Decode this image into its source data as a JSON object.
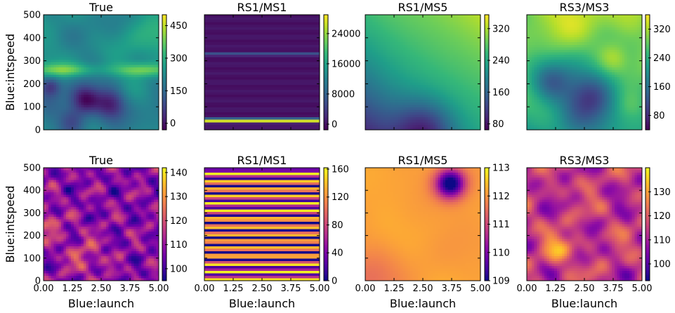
{
  "chart_data": [
    {
      "type": "heatmap",
      "title": "True",
      "colormap": "viridis",
      "xlabel": "",
      "ylabel": "Blue:intspeed",
      "xlim": [
        0,
        5
      ],
      "ylim": [
        0,
        500
      ],
      "clim": [
        -30,
        500
      ],
      "xticks": [],
      "yticks": [
        "0",
        "100",
        "200",
        "300",
        "400",
        "500"
      ],
      "cbar_ticks": [
        {
          "value": 0,
          "label": "0"
        },
        {
          "value": 150,
          "label": "150"
        },
        {
          "value": 300,
          "label": "300"
        },
        {
          "value": 450,
          "label": "450"
        }
      ],
      "field_model": "smooth random field with a bright band near y=250 and dark blobs around x=1.8, 2.8 at y=130"
    },
    {
      "type": "heatmap",
      "title": "RS1/MS1",
      "colormap": "viridis",
      "xlabel": "",
      "ylabel": "",
      "xlim": [
        0,
        5
      ],
      "ylim": [
        0,
        500
      ],
      "clim": [
        -1500,
        29000
      ],
      "xticks": [],
      "yticks": [],
      "cbar_ticks": [
        {
          "value": 0,
          "label": "0"
        },
        {
          "value": 8000,
          "label": "8000"
        },
        {
          "value": 16000,
          "label": "16000"
        },
        {
          "value": 24000,
          "label": "24000"
        }
      ],
      "field_model": "horizontal stripes; bright band near y=40, faint band near y=330"
    },
    {
      "type": "heatmap",
      "title": "RS1/MS5",
      "colormap": "viridis",
      "xlabel": "",
      "ylabel": "",
      "xlim": [
        0,
        5
      ],
      "ylim": [
        0,
        500
      ],
      "clim": [
        65,
        355
      ],
      "xticks": [],
      "yticks": [],
      "cbar_ticks": [
        {
          "value": 80,
          "label": "80"
        },
        {
          "value": 160,
          "label": "160"
        },
        {
          "value": 240,
          "label": "240"
        },
        {
          "value": 320,
          "label": "320"
        }
      ],
      "field_model": "diagonal gradient increasing toward top-right, minimum near x=2.6, y=0"
    },
    {
      "type": "heatmap",
      "title": "RS3/MS3",
      "colormap": "viridis",
      "xlabel": "",
      "ylabel": "",
      "xlim": [
        0,
        5
      ],
      "ylim": [
        0,
        500
      ],
      "clim": [
        40,
        360
      ],
      "xticks": [],
      "yticks": [],
      "cbar_ticks": [
        {
          "value": 80,
          "label": "80"
        },
        {
          "value": 160,
          "label": "160"
        },
        {
          "value": 240,
          "label": "240"
        },
        {
          "value": 320,
          "label": "320"
        }
      ],
      "field_model": "smooth field, high at top, dark trough around x=2.8, y=140"
    },
    {
      "type": "heatmap",
      "title": "True",
      "colormap": "plasma",
      "xlabel": "Blue:launch",
      "ylabel": "Blue:intspeed",
      "xlim": [
        0,
        5
      ],
      "ylim": [
        0,
        500
      ],
      "clim": [
        95,
        142
      ],
      "xticks": [
        "0.00",
        "1.25",
        "2.50",
        "3.75",
        "5.00"
      ],
      "yticks": [
        "0",
        "100",
        "200",
        "300",
        "400",
        "500"
      ],
      "cbar_ticks": [
        {
          "value": 100,
          "label": "100"
        },
        {
          "value": 110,
          "label": "110"
        },
        {
          "value": 120,
          "label": "120"
        },
        {
          "value": 130,
          "label": "130"
        },
        {
          "value": 140,
          "label": "140"
        }
      ],
      "field_model": "high-frequency mottled noise, mostly purple with orange spots"
    },
    {
      "type": "heatmap",
      "title": "RS1/MS1",
      "colormap": "plasma",
      "xlabel": "Blue:launch",
      "ylabel": "",
      "xlim": [
        0,
        5
      ],
      "ylim": [
        0,
        500
      ],
      "clim": [
        0,
        162
      ],
      "xticks": [
        "0.00",
        "1.25",
        "2.50",
        "3.75",
        "5.00"
      ],
      "yticks": [],
      "cbar_ticks": [
        {
          "value": 0,
          "label": "0"
        },
        {
          "value": 40,
          "label": "40"
        },
        {
          "value": 80,
          "label": "80"
        },
        {
          "value": 120,
          "label": "120"
        },
        {
          "value": 160,
          "label": "160"
        }
      ],
      "field_model": "many horizontal purple/yellow stripes"
    },
    {
      "type": "heatmap",
      "title": "RS1/MS5",
      "colormap": "plasma",
      "xlabel": "Blue:launch",
      "ylabel": "",
      "xlim": [
        0,
        5
      ],
      "ylim": [
        0,
        500
      ],
      "clim": [
        109,
        113
      ],
      "xticks": [
        "0.00",
        "1.25",
        "2.50",
        "3.75",
        "5.00"
      ],
      "yticks": [],
      "cbar_ticks": [
        {
          "value": 109,
          "label": "109"
        },
        {
          "value": 110,
          "label": "110"
        },
        {
          "value": 111,
          "label": "111"
        },
        {
          "value": 112,
          "label": "112"
        },
        {
          "value": 113,
          "label": "113"
        }
      ],
      "field_model": "mostly uniform orange, deep purple spot near x=3.7, y=430"
    },
    {
      "type": "heatmap",
      "title": "RS3/MS3",
      "colormap": "plasma",
      "xlabel": "Blue:launch",
      "ylabel": "",
      "xlim": [
        0,
        5
      ],
      "ylim": [
        0,
        500
      ],
      "clim": [
        93,
        140
      ],
      "xticks": [
        "0.00",
        "1.25",
        "2.50",
        "3.75",
        "5.00"
      ],
      "yticks": [],
      "cbar_ticks": [
        {
          "value": 100,
          "label": "100"
        },
        {
          "value": 110,
          "label": "110"
        },
        {
          "value": 120,
          "label": "120"
        },
        {
          "value": 130,
          "label": "130"
        }
      ],
      "field_model": "smooth blobby field, magenta/orange with purple patches"
    }
  ]
}
